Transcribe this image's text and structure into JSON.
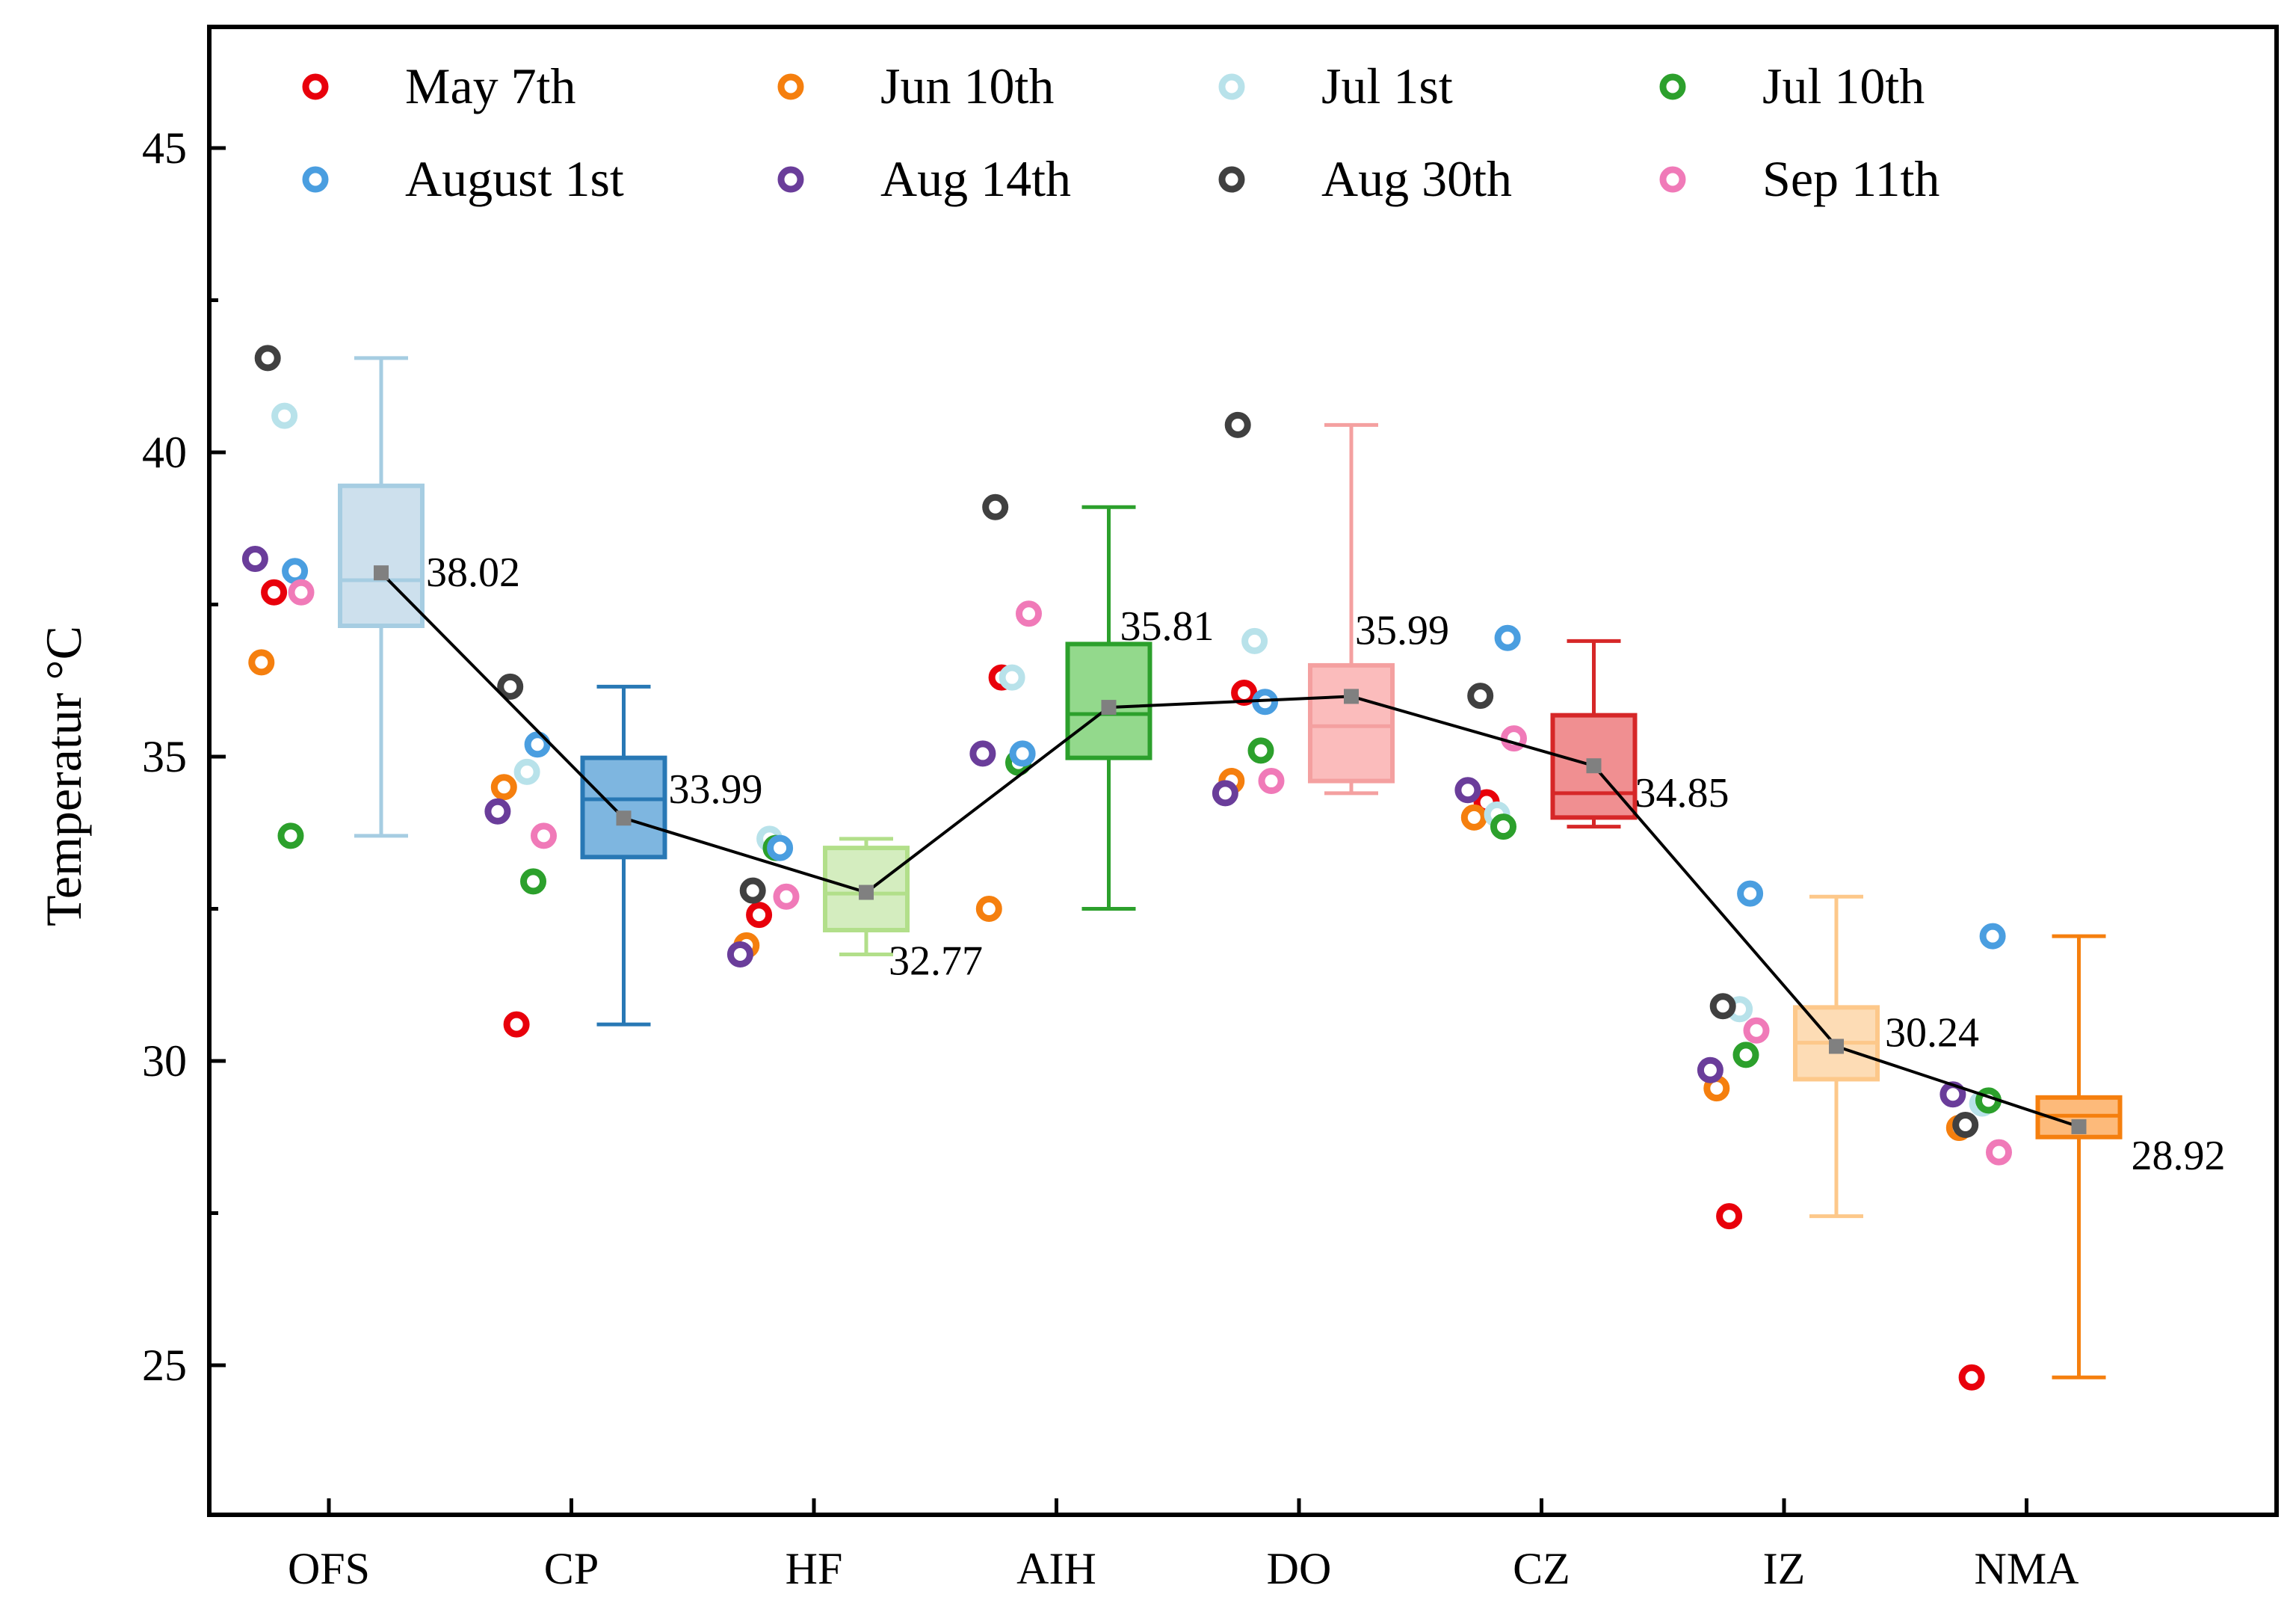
{
  "chart_data": {
    "type": "box",
    "ylabel": "Temperatur °C",
    "xlabel": "",
    "ylim": [
      22.5,
      47
    ],
    "yticks": [
      25,
      30,
      35,
      40,
      45
    ],
    "categories": [
      "OFS",
      "CP",
      "HF",
      "AIH",
      "DO",
      "CZ",
      "IZ",
      "NMA"
    ],
    "legend": {
      "placement": "top",
      "entries": [
        {
          "label": "May 7th",
          "color": "#e8000b"
        },
        {
          "label": "Jun 10th",
          "color": "#f57f0e"
        },
        {
          "label": "Jul 1st",
          "color": "#b8e2ea"
        },
        {
          "label": "Jul 10th",
          "color": "#2ca02c"
        },
        {
          "label": "August 1st",
          "color": "#4a9ee0"
        },
        {
          "label": "Aug 14th",
          "color": "#6a3d9a"
        },
        {
          "label": "Aug 30th",
          "color": "#404040"
        },
        {
          "label": "Sep 11th",
          "color": "#f07ab8"
        }
      ]
    },
    "boxes": [
      {
        "category": "OFS",
        "min": 33.7,
        "q1": 37.15,
        "median": 37.9,
        "q3": 39.45,
        "max": 41.55,
        "mean": 38.02,
        "mean_label": "38.02",
        "color": "#a6cde2",
        "fill": "#cde0ed"
      },
      {
        "category": "CP",
        "min": 30.6,
        "q1": 33.35,
        "median": 34.3,
        "q3": 34.98,
        "max": 36.15,
        "mean": 33.99,
        "mean_label": "33.99",
        "color": "#2878b5",
        "fill": "#7eb6e0"
      },
      {
        "category": "HF",
        "min": 31.75,
        "q1": 32.15,
        "median": 32.75,
        "q3": 33.5,
        "max": 33.65,
        "mean": 32.77,
        "mean_label": "32.77",
        "color": "#b2df8a",
        "fill": "#d4edbf"
      },
      {
        "category": "AIH",
        "min": 32.5,
        "q1": 34.98,
        "median": 35.7,
        "q3": 36.85,
        "max": 39.1,
        "mean": 35.81,
        "mean_label": "35.81",
        "color": "#2ca02c",
        "fill": "#93d98c"
      },
      {
        "category": "DO",
        "min": 34.4,
        "q1": 34.6,
        "median": 35.5,
        "q3": 36.5,
        "max": 40.45,
        "mean": 35.99,
        "mean_label": "35.99",
        "color": "#f4a0a0",
        "fill": "#fbbcbc"
      },
      {
        "category": "CZ",
        "min": 33.85,
        "q1": 34.0,
        "median": 34.4,
        "q3": 35.68,
        "max": 36.9,
        "mean": 34.85,
        "mean_label": "34.85",
        "color": "#d62728",
        "fill": "#f08f91"
      },
      {
        "category": "IZ",
        "min": 27.45,
        "q1": 29.7,
        "median": 30.3,
        "q3": 30.88,
        "max": 32.7,
        "mean": 30.24,
        "mean_label": "30.24",
        "color": "#fdc88a",
        "fill": "#fddcb5"
      },
      {
        "category": "NMA",
        "min": 24.8,
        "q1": 28.75,
        "median": 29.1,
        "q3": 29.4,
        "max": 32.05,
        "mean": 28.92,
        "mean_label": "28.92",
        "color": "#f57f0e",
        "fill": "#fdba7a"
      }
    ],
    "points": [
      {
        "category": "OFS",
        "series": [
          37.7,
          36.55,
          40.6,
          33.7,
          38.05,
          38.25,
          41.55,
          37.7
        ]
      },
      {
        "category": "CP",
        "series": [
          30.6,
          34.5,
          34.75,
          32.95,
          35.2,
          34.1,
          36.15,
          33.7
        ]
      },
      {
        "category": "HF",
        "series": [
          32.4,
          31.9,
          33.65,
          33.5,
          33.5,
          31.75,
          32.8,
          32.7
        ]
      },
      {
        "category": "AIH",
        "series": [
          36.3,
          32.5,
          36.3,
          34.9,
          35.05,
          35.05,
          39.1,
          37.35
        ]
      },
      {
        "category": "DO",
        "series": [
          36.05,
          34.6,
          36.9,
          35.1,
          35.9,
          34.4,
          40.45,
          34.6
        ]
      },
      {
        "category": "CZ",
        "series": [
          34.25,
          34.0,
          34.05,
          33.85,
          36.95,
          34.45,
          36.0,
          35.3
        ]
      },
      {
        "category": "IZ",
        "series": [
          27.45,
          29.55,
          30.85,
          30.1,
          32.75,
          29.85,
          30.9,
          30.5
        ]
      },
      {
        "category": "NMA",
        "series": [
          24.8,
          28.9,
          29.3,
          29.35,
          32.05,
          29.45,
          28.95,
          28.5
        ]
      }
    ]
  }
}
